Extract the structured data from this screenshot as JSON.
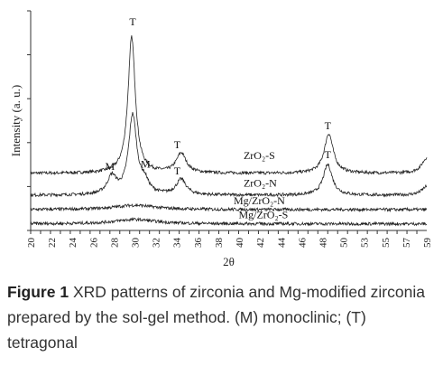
{
  "chart_data": {
    "type": "line",
    "xlabel": "2θ",
    "ylabel": "Intensity (a. u.)",
    "xlim": [
      20,
      60
    ],
    "x_ticks": [
      20,
      21,
      22,
      23,
      24,
      25,
      26,
      27,
      28,
      29,
      30,
      31,
      32,
      33,
      34,
      35,
      36,
      37,
      38,
      39,
      40,
      41,
      42,
      43,
      44,
      45,
      46,
      47,
      48,
      49,
      50,
      51,
      52,
      53,
      54,
      55,
      56,
      57,
      58,
      59
    ],
    "x_tick_labels": [
      "20",
      "22",
      "24",
      "26",
      "28",
      "30",
      "32",
      "34",
      "36",
      "38",
      "40",
      "42",
      "44",
      "46",
      "48",
      "50",
      "53",
      "55",
      "57",
      "59"
    ],
    "series": [
      {
        "name": "ZrO2-S",
        "label": "ZrO₂-S",
        "baseline": 2.6,
        "peaks": [
          {
            "x": 30.2,
            "height": 6.2,
            "width": 0.45
          },
          {
            "x": 35.2,
            "height": 0.9,
            "width": 0.6
          },
          {
            "x": 50.1,
            "height": 1.8,
            "width": 0.55
          },
          {
            "x": 60.0,
            "height": 0.7,
            "width": 0.6
          }
        ]
      },
      {
        "name": "ZrO2-N",
        "label": "ZrO₂-N",
        "baseline": 1.6,
        "peaks": [
          {
            "x": 28.2,
            "height": 0.8,
            "width": 0.55
          },
          {
            "x": 30.3,
            "height": 3.6,
            "width": 0.5
          },
          {
            "x": 31.5,
            "height": 0.5,
            "width": 0.5
          },
          {
            "x": 35.2,
            "height": 0.7,
            "width": 0.6
          },
          {
            "x": 50.0,
            "height": 1.4,
            "width": 0.55
          },
          {
            "x": 60.0,
            "height": 0.4,
            "width": 0.6
          }
        ]
      },
      {
        "name": "Mg/ZrO2-N",
        "label": "Mg/ZrO₂-N",
        "baseline": 0.95,
        "peaks": [
          {
            "x": 30.5,
            "height": 0.2,
            "width": 2.5
          }
        ]
      },
      {
        "name": "Mg/ZrO2-S",
        "label": "Mg/ZrO₂-S",
        "baseline": 0.3,
        "peaks": [
          {
            "x": 30.5,
            "height": 0.2,
            "width": 2.5
          }
        ]
      }
    ],
    "annotations": [
      {
        "text": "T",
        "x": 30.3,
        "y": 9.35
      },
      {
        "text": "T",
        "x": 34.8,
        "y": 3.75
      },
      {
        "text": "T",
        "x": 50.0,
        "y": 4.6
      },
      {
        "text": "M",
        "x": 28.0,
        "y": 2.75
      },
      {
        "text": "M",
        "x": 31.6,
        "y": 2.85
      },
      {
        "text": "T",
        "x": 34.8,
        "y": 2.55
      },
      {
        "text": "T",
        "x": 50.0,
        "y": 3.3
      }
    ],
    "trace_labels": [
      {
        "series": "ZrO2-S",
        "text": "ZrO₂-S",
        "x": 41.5,
        "y": 3.25
      },
      {
        "series": "ZrO2-N",
        "text": "ZrO₂-N",
        "x": 41.5,
        "y": 2.0
      },
      {
        "series": "Mg/ZrO2-N",
        "text": "Mg/ZrO₂-N",
        "x": 40.5,
        "y": 1.2
      },
      {
        "series": "Mg/ZrO2-S",
        "text": "Mg/ZrO₂-S",
        "x": 41.0,
        "y": 0.55
      }
    ],
    "ylim": [
      0,
      10
    ],
    "grid": false
  },
  "caption": {
    "figure_label": "Figure 1",
    "text": " XRD patterns of zirconia and Mg-modified zirconia prepared by the sol-gel method. (M) monoclinic; (T) tetragonal"
  }
}
